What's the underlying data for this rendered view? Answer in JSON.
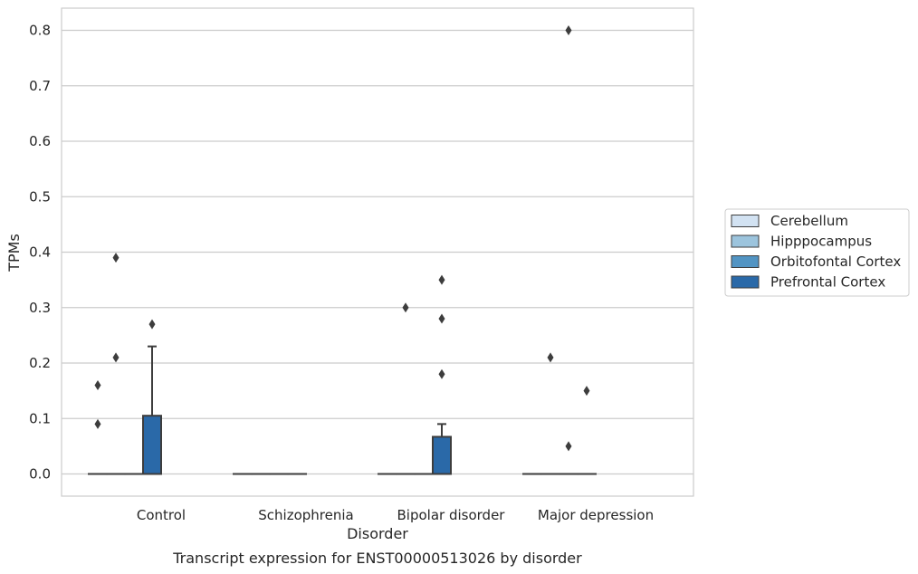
{
  "chart_data": {
    "type": "box",
    "title": "",
    "caption": "Transcript expression for ENST00000513026 by disorder",
    "xlabel": "Disorder",
    "ylabel": "TPMs",
    "ylim": [
      -0.04,
      0.84
    ],
    "yticks": [
      0.0,
      0.1,
      0.2,
      0.3,
      0.4,
      0.5,
      0.6,
      0.7,
      0.8
    ],
    "grid": true,
    "legend_position": "right",
    "categories": [
      "Control",
      "Schizophrenia",
      "Bipolar disorder",
      "Major depression"
    ],
    "series": [
      {
        "name": "Cerebellum",
        "color": "#d2e2f2",
        "boxes": [
          {
            "q1": 0,
            "median": 0,
            "q3": 0,
            "whisker_low": 0,
            "whisker_high": 0,
            "outliers": [
              0.09,
              0.16
            ]
          },
          {
            "q1": 0,
            "median": 0,
            "q3": 0,
            "whisker_low": 0,
            "whisker_high": 0,
            "outliers": []
          },
          {
            "q1": 0,
            "median": 0,
            "q3": 0,
            "whisker_low": 0,
            "whisker_high": 0,
            "outliers": []
          },
          {
            "q1": 0,
            "median": 0,
            "q3": 0,
            "whisker_low": 0,
            "whisker_high": 0,
            "outliers": []
          }
        ]
      },
      {
        "name": "Hipppocampus",
        "color": "#9cc4dd",
        "boxes": [
          {
            "q1": 0,
            "median": 0,
            "q3": 0,
            "whisker_low": 0,
            "whisker_high": 0,
            "outliers": [
              0.21,
              0.39
            ]
          },
          {
            "q1": 0,
            "median": 0,
            "q3": 0,
            "whisker_low": 0,
            "whisker_high": 0,
            "outliers": []
          },
          {
            "q1": 0,
            "median": 0,
            "q3": 0,
            "whisker_low": 0,
            "whisker_high": 0,
            "outliers": [
              0.3
            ]
          },
          {
            "q1": 0,
            "median": 0,
            "q3": 0,
            "whisker_low": 0,
            "whisker_high": 0,
            "outliers": [
              0.21
            ]
          }
        ]
      },
      {
        "name": "Orbitofontal Cortex",
        "color": "#5294c3",
        "boxes": [
          {
            "q1": 0,
            "median": 0,
            "q3": 0,
            "whisker_low": 0,
            "whisker_high": 0,
            "outliers": []
          },
          {
            "q1": 0,
            "median": 0,
            "q3": 0,
            "whisker_low": 0,
            "whisker_high": 0,
            "outliers": []
          },
          {
            "q1": 0,
            "median": 0,
            "q3": 0,
            "whisker_low": 0,
            "whisker_high": 0,
            "outliers": []
          },
          {
            "q1": 0,
            "median": 0,
            "q3": 0,
            "whisker_low": 0,
            "whisker_high": 0,
            "outliers": [
              0.05,
              0.8
            ]
          }
        ]
      },
      {
        "name": "Prefrontal Cortex",
        "color": "#2a69a8",
        "boxes": [
          {
            "q1": 0,
            "median": 0,
            "q3": 0.105,
            "whisker_low": 0,
            "whisker_high": 0.23,
            "outliers": [
              0.27
            ]
          },
          {
            "q1": 0,
            "median": 0,
            "q3": 0,
            "whisker_low": 0,
            "whisker_high": 0,
            "outliers": []
          },
          {
            "q1": 0,
            "median": 0,
            "q3": 0.067,
            "whisker_low": 0,
            "whisker_high": 0.09,
            "outliers": [
              0.18,
              0.28,
              0.35
            ]
          },
          {
            "q1": 0,
            "median": 0,
            "q3": 0,
            "whisker_low": 0,
            "whisker_high": 0,
            "outliers": [
              0.15
            ]
          }
        ]
      }
    ]
  }
}
